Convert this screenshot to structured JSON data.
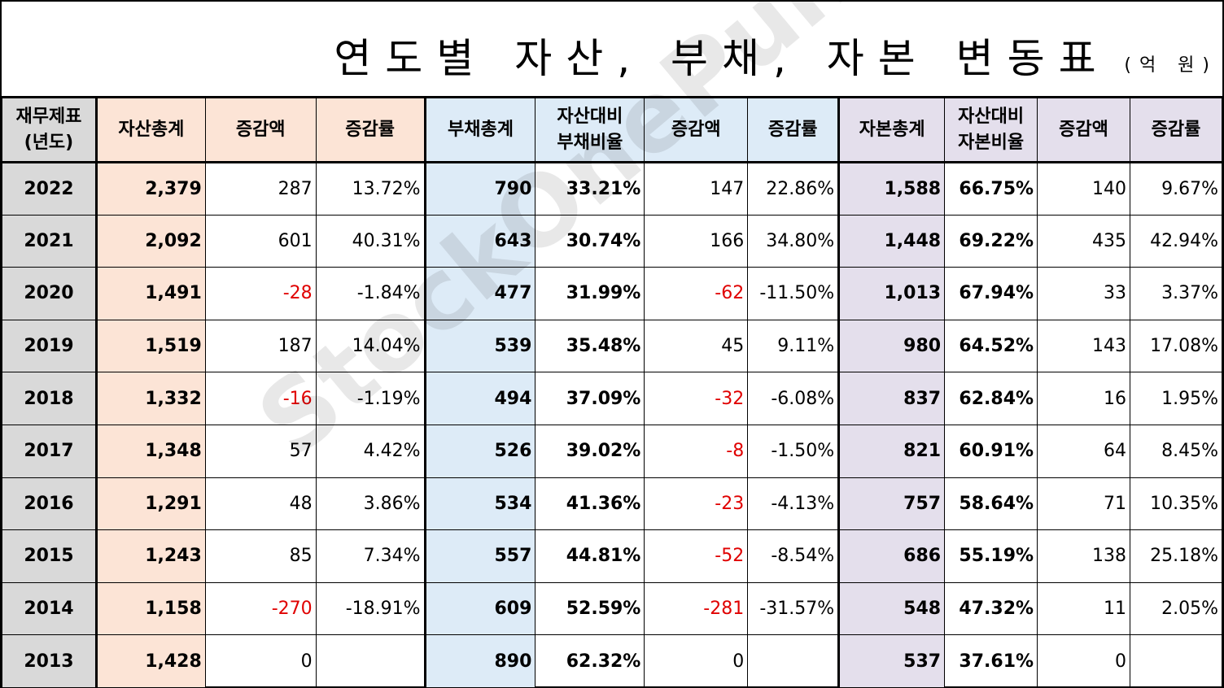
{
  "title": "연도별 자산, 부채, 자본 변동표",
  "unit": "(억 원)",
  "watermark": "StockOnePunch",
  "headers": {
    "year": "재무제표\n(년도)",
    "assets": "자산총계",
    "asset_change": "증감액",
    "asset_rate": "증감률",
    "liab": "부채총계",
    "liab_ratio": "자산대비\n부채비율",
    "liab_change": "증감액",
    "liab_rate": "증감률",
    "equity": "자본총계",
    "equity_ratio": "자산대비\n자본비율",
    "equity_change": "증감액",
    "equity_rate": "증감률"
  },
  "rows": [
    {
      "year": "2022",
      "assets": "2,379",
      "asset_change": "287",
      "asset_rate": "13.72%",
      "liab": "790",
      "liab_ratio": "33.21%",
      "liab_change": "147",
      "liab_rate": "22.86%",
      "equity": "1,588",
      "equity_ratio": "66.75%",
      "equity_change": "140",
      "equity_rate": "9.67%"
    },
    {
      "year": "2021",
      "assets": "2,092",
      "asset_change": "601",
      "asset_rate": "40.31%",
      "liab": "643",
      "liab_ratio": "30.74%",
      "liab_change": "166",
      "liab_rate": "34.80%",
      "equity": "1,448",
      "equity_ratio": "69.22%",
      "equity_change": "435",
      "equity_rate": "42.94%"
    },
    {
      "year": "2020",
      "assets": "1,491",
      "asset_change": "-28",
      "asset_rate": "-1.84%",
      "liab": "477",
      "liab_ratio": "31.99%",
      "liab_change": "-62",
      "liab_rate": "-11.50%",
      "equity": "1,013",
      "equity_ratio": "67.94%",
      "equity_change": "33",
      "equity_rate": "3.37%"
    },
    {
      "year": "2019",
      "assets": "1,519",
      "asset_change": "187",
      "asset_rate": "14.04%",
      "liab": "539",
      "liab_ratio": "35.48%",
      "liab_change": "45",
      "liab_rate": "9.11%",
      "equity": "980",
      "equity_ratio": "64.52%",
      "equity_change": "143",
      "equity_rate": "17.08%"
    },
    {
      "year": "2018",
      "assets": "1,332",
      "asset_change": "-16",
      "asset_rate": "-1.19%",
      "liab": "494",
      "liab_ratio": "37.09%",
      "liab_change": "-32",
      "liab_rate": "-6.08%",
      "equity": "837",
      "equity_ratio": "62.84%",
      "equity_change": "16",
      "equity_rate": "1.95%"
    },
    {
      "year": "2017",
      "assets": "1,348",
      "asset_change": "57",
      "asset_rate": "4.42%",
      "liab": "526",
      "liab_ratio": "39.02%",
      "liab_change": "-8",
      "liab_rate": "-1.50%",
      "equity": "821",
      "equity_ratio": "60.91%",
      "equity_change": "64",
      "equity_rate": "8.45%"
    },
    {
      "year": "2016",
      "assets": "1,291",
      "asset_change": "48",
      "asset_rate": "3.86%",
      "liab": "534",
      "liab_ratio": "41.36%",
      "liab_change": "-23",
      "liab_rate": "-4.13%",
      "equity": "757",
      "equity_ratio": "58.64%",
      "equity_change": "71",
      "equity_rate": "10.35%"
    },
    {
      "year": "2015",
      "assets": "1,243",
      "asset_change": "85",
      "asset_rate": "7.34%",
      "liab": "557",
      "liab_ratio": "44.81%",
      "liab_change": "-52",
      "liab_rate": "-8.54%",
      "equity": "686",
      "equity_ratio": "55.19%",
      "equity_change": "138",
      "equity_rate": "25.18%"
    },
    {
      "year": "2014",
      "assets": "1,158",
      "asset_change": "-270",
      "asset_rate": "-18.91%",
      "liab": "609",
      "liab_ratio": "52.59%",
      "liab_change": "-281",
      "liab_rate": "-31.57%",
      "equity": "548",
      "equity_ratio": "47.32%",
      "equity_change": "11",
      "equity_rate": "2.05%"
    },
    {
      "year": "2013",
      "assets": "1,428",
      "asset_change": "0",
      "asset_rate": "",
      "liab": "890",
      "liab_ratio": "62.32%",
      "liab_change": "0",
      "liab_rate": "",
      "equity": "537",
      "equity_ratio": "37.61%",
      "equity_change": "0",
      "equity_rate": ""
    }
  ],
  "colors": {
    "year_fill": "#d9d9d9",
    "asset_fill": "#fce4d6",
    "liab_fill": "#ddebf7",
    "equity_fill": "#e4dfec",
    "negative_text": "#e00000"
  }
}
